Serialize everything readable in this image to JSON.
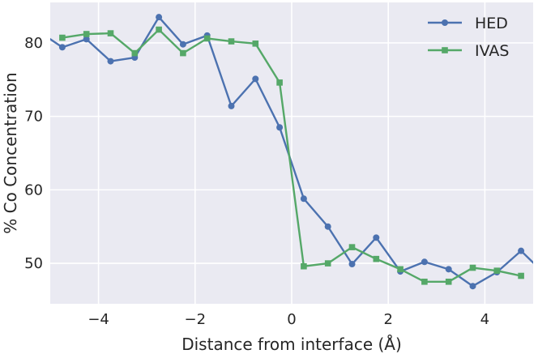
{
  "chart_data": {
    "type": "line",
    "xlabel": "Distance from interface (Å)",
    "ylabel": "% Co Concentration",
    "xlim": [
      -5,
      5
    ],
    "ylim": [
      44.5,
      85.5
    ],
    "xticks": [
      -4,
      -2,
      0,
      2,
      4
    ],
    "yticks": [
      50,
      60,
      70,
      80
    ],
    "xtick_labels": [
      "−4",
      "−2",
      "0",
      "2",
      "4"
    ],
    "ytick_labels": [
      "50",
      "60",
      "70",
      "80"
    ],
    "grid": true,
    "background": "#eaeaf2",
    "legend_position": "top-right",
    "series": [
      {
        "name": "HED",
        "color": "#4c72b0",
        "marker": "circle",
        "x": [
          -5.25,
          -4.75,
          -4.25,
          -3.75,
          -3.25,
          -2.75,
          -2.25,
          -1.75,
          -1.25,
          -0.75,
          -0.25,
          0.25,
          0.75,
          1.25,
          1.75,
          2.25,
          2.75,
          3.25,
          3.75,
          4.25,
          4.75,
          5.25
        ],
        "y": [
          81.6,
          79.4,
          80.5,
          77.5,
          78.0,
          83.5,
          79.8,
          81.0,
          71.4,
          75.1,
          68.5,
          58.8,
          55.0,
          49.9,
          53.5,
          48.9,
          50.2,
          49.2,
          46.9,
          48.8,
          51.7,
          48.5
        ]
      },
      {
        "name": "IVAS",
        "color": "#55a868",
        "marker": "square",
        "x": [
          -4.75,
          -4.25,
          -3.75,
          -3.25,
          -2.75,
          -2.25,
          -1.75,
          -1.25,
          -0.75,
          -0.25,
          0.25,
          0.75,
          1.25,
          1.75,
          2.25,
          2.75,
          3.25,
          3.75,
          4.25,
          4.75
        ],
        "y": [
          80.7,
          81.2,
          81.3,
          78.6,
          81.8,
          78.6,
          80.6,
          80.2,
          79.9,
          74.6,
          49.6,
          50.0,
          52.2,
          50.6,
          49.2,
          47.5,
          47.5,
          49.4,
          49.0,
          48.3
        ]
      }
    ]
  }
}
